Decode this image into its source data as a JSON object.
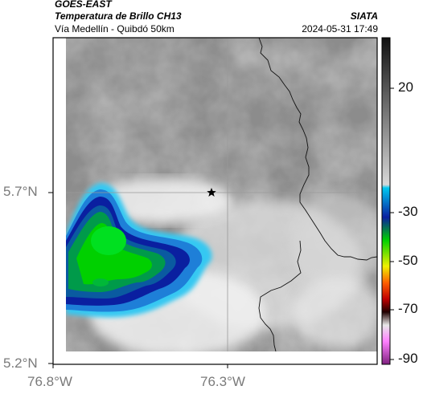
{
  "header": {
    "satellite": "GOES-EAST",
    "product": "Temperatura de Brillo CH13",
    "region": "Vía Medellín - Quibdó 50km",
    "organization": "SIATA",
    "timestamp": "2024-05-31 17:49"
  },
  "axes": {
    "x_ticks": [
      "76.8°W",
      "76.3°W"
    ],
    "y_ticks": [
      "5.7°N",
      "5.2°N"
    ]
  },
  "colorbar": {
    "labels": [
      "20",
      "-30",
      "-50",
      "-70",
      "-90"
    ]
  },
  "map": {
    "marker": "star-marker",
    "feature": "department-border"
  },
  "colors": {
    "cloud_cold_core": "#00d000",
    "cloud_blue": "#0a1fa0",
    "cloud_cyan": "#00c8f0",
    "background_gray": "#8a8a8a"
  }
}
